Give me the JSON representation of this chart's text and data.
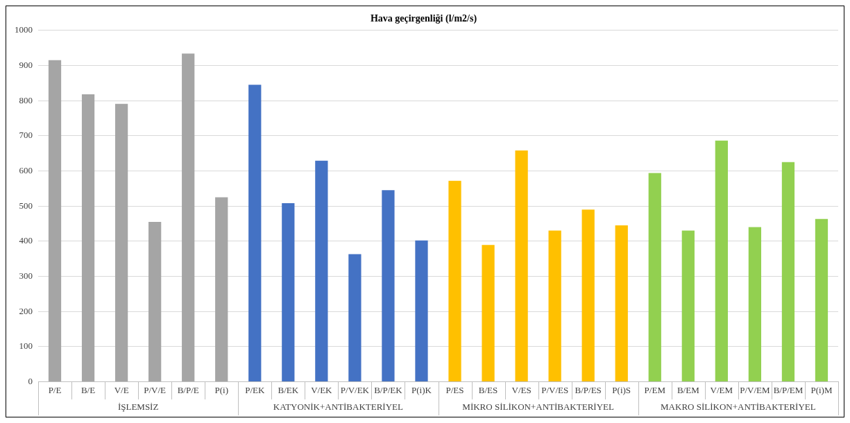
{
  "chart_data": {
    "type": "bar",
    "title": "Hava geçirgenliği (l/m2/s)",
    "categories": [
      "P/E",
      "B/E",
      "V/E",
      "P/V/E",
      "B/P/E",
      "P(i)",
      "P/EK",
      "B/EK",
      "V/EK",
      "P/V/EK",
      "B/P/EK",
      "P(i)K",
      "P/ES",
      "B/ES",
      "V/ES",
      "P/V/ES",
      "B/P/ES",
      "P(i)S",
      "P/EM",
      "B/EM",
      "V/EM",
      "P/V/EM",
      "B/P/EM",
      "P(i)M"
    ],
    "series": [
      {
        "name": "İŞLEMSİZ",
        "color": "#a5a5a5",
        "values": [
          915,
          818,
          791,
          455,
          934,
          525,
          null,
          null,
          null,
          null,
          null,
          null,
          null,
          null,
          null,
          null,
          null,
          null,
          null,
          null,
          null,
          null,
          null,
          null
        ]
      },
      {
        "name": "KATYONİK+ANTİBAKTERİYEL",
        "color": "#4472c4",
        "values": [
          null,
          null,
          null,
          null,
          null,
          null,
          845,
          508,
          629,
          363,
          545,
          402,
          null,
          null,
          null,
          null,
          null,
          null,
          null,
          null,
          null,
          null,
          null,
          null
        ]
      },
      {
        "name": "MİKRO SİLİKON+ANTİBAKTERİYEL",
        "color": "#ffc000",
        "values": [
          null,
          null,
          null,
          null,
          null,
          null,
          null,
          null,
          null,
          null,
          null,
          null,
          572,
          389,
          658,
          430,
          490,
          445,
          null,
          null,
          null,
          null,
          null,
          null
        ]
      },
      {
        "name": "MAKRO SİLİKON+ANTİBAKTERİYEL",
        "color": "#92d050",
        "values": [
          null,
          null,
          null,
          null,
          null,
          null,
          null,
          null,
          null,
          null,
          null,
          null,
          null,
          null,
          null,
          null,
          null,
          null,
          594,
          430,
          686,
          440,
          625,
          463
        ]
      }
    ],
    "ylim": [
      0,
      1000
    ],
    "yticks": [
      0,
      100,
      200,
      300,
      400,
      500,
      600,
      700,
      800,
      900,
      1000
    ],
    "grid": "y",
    "legend": false
  }
}
